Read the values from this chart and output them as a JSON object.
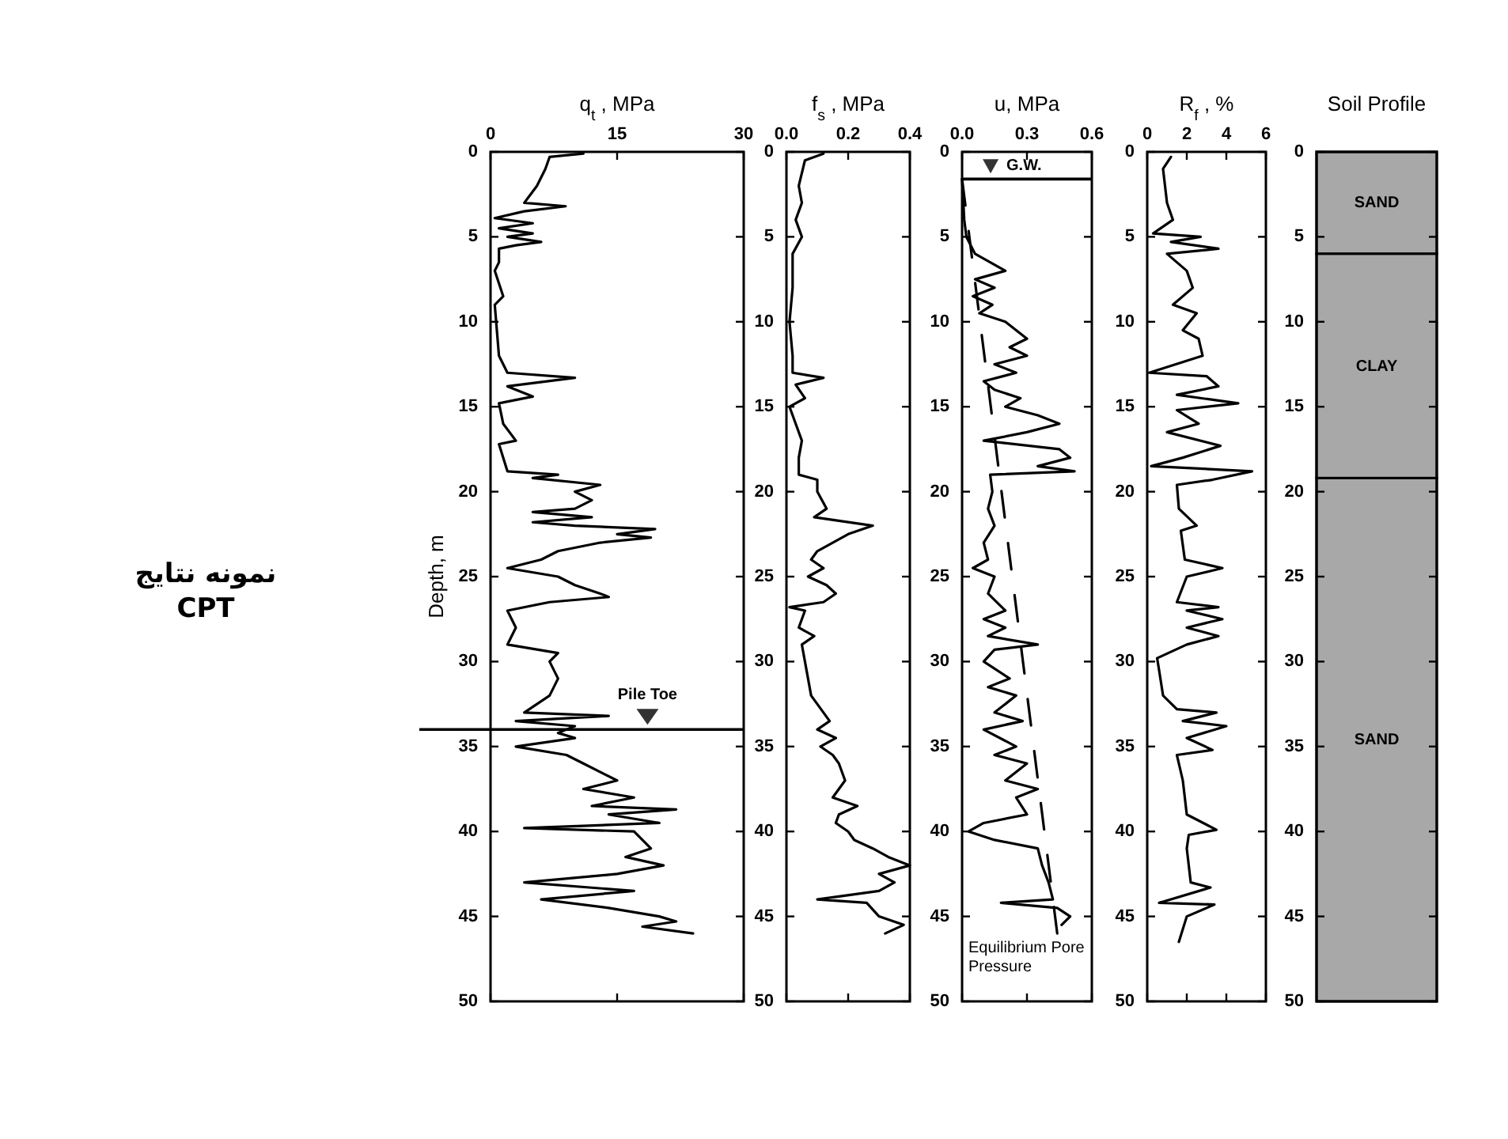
{
  "chart_data": [
    {
      "type": "other",
      "title": "نمونه نتایج CPT"
    },
    {
      "type": "line",
      "xlabel": "q$_{t}$ , MPa",
      "ylabel": "Depth, m",
      "xlim": [
        0,
        30
      ],
      "xticks": [
        0,
        15,
        30
      ],
      "ylim": [
        50,
        0
      ],
      "yticks": [
        0,
        5,
        10,
        15,
        20,
        25,
        30,
        35,
        40,
        45,
        50
      ],
      "series": [
        {
          "color": "#000000",
          "x": [
            11,
            7,
            6.5,
            5.5,
            4,
            8.9,
            4,
            0.5,
            5,
            1,
            5,
            2,
            6,
            3,
            1,
            1,
            0.5,
            1.5,
            0.5,
            1,
            2,
            10,
            2,
            5,
            1,
            1.5,
            3,
            1,
            2,
            8,
            5,
            13,
            10,
            12,
            10,
            5,
            12,
            5,
            10,
            19.5,
            15,
            19,
            13,
            8,
            6,
            2,
            8,
            10,
            13,
            14,
            7,
            2,
            3,
            2,
            8,
            7,
            8,
            7,
            4,
            14,
            3,
            10,
            8,
            10,
            3,
            9,
            11,
            15,
            11,
            17,
            12,
            22,
            14,
            20,
            4,
            17,
            19,
            16,
            20.5,
            15,
            4,
            17,
            6,
            14,
            20,
            22,
            18,
            24
          ],
          "values": [
            0.1,
            0.3,
            1,
            2,
            3,
            3.2,
            3.5,
            3.9,
            4.2,
            4.5,
            4.8,
            5,
            5.3,
            5.5,
            5.7,
            6.5,
            7,
            8.5,
            9,
            12,
            13,
            13.3,
            13.8,
            14.4,
            14.8,
            16,
            17,
            17.2,
            18.8,
            19,
            19.2,
            19.6,
            20,
            20.5,
            21,
            21.2,
            21.5,
            21.8,
            22,
            22.2,
            22.5,
            22.7,
            23,
            23.5,
            24,
            24.5,
            25,
            25.5,
            26,
            26.2,
            26.5,
            27,
            28,
            29,
            29.5,
            30,
            31,
            32,
            33,
            33.2,
            33.5,
            33.8,
            34.2,
            34.5,
            35,
            35.5,
            36,
            37,
            37.5,
            38,
            38.5,
            38.7,
            39,
            39.5,
            39.8,
            40,
            41,
            41.5,
            42,
            42.5,
            43,
            43.5,
            44,
            44.5,
            45,
            45.3,
            45.6,
            46
          ]
        }
      ],
      "ref_lines": [
        {
          "axis": "y",
          "value": 34,
          "label": "Pile Toe",
          "color": "#000000"
        }
      ]
    },
    {
      "type": "line",
      "xlabel": "f$_{s}$ , MPa",
      "xlim": [
        0,
        0.4
      ],
      "xticks": [
        {
          "value": 0,
          "label": "0.0"
        },
        0.2,
        0.4
      ],
      "ylim": [
        50,
        0
      ],
      "yticks": [
        0,
        5,
        10,
        15,
        20,
        25,
        30,
        35,
        40,
        45,
        50
      ],
      "series": [
        {
          "color": "#000000",
          "x": [
            0.12,
            0.06,
            0.04,
            0.05,
            0.03,
            0.05,
            0.02,
            0.02,
            0.01,
            0.02,
            0.02,
            0.12,
            0.03,
            0.06,
            0.01,
            0.03,
            0.05,
            0.04,
            0.04,
            0.1,
            0.1,
            0.13,
            0.09,
            0.28,
            0.2,
            0.15,
            0.1,
            0.08,
            0.12,
            0.07,
            0.13,
            0.16,
            0.12,
            0.01,
            0.06,
            0.04,
            0.09,
            0.05,
            0.06,
            0.07,
            0.08,
            0.1,
            0.12,
            0.14,
            0.1,
            0.16,
            0.11,
            0.15,
            0.17,
            0.19,
            0.17,
            0.15,
            0.23,
            0.17,
            0.16,
            0.2,
            0.22,
            0.28,
            0.33,
            0.4,
            0.3,
            0.35,
            0.3,
            0.1,
            0.26,
            0.3,
            0.38,
            0.32
          ],
          "values": [
            0.1,
            0.5,
            2,
            3,
            4,
            5,
            6,
            8,
            10,
            12,
            13,
            13.3,
            13.7,
            14.5,
            15,
            16,
            17,
            18,
            19,
            19.3,
            20,
            21,
            21.5,
            22,
            22.5,
            23,
            23.5,
            24,
            24.5,
            25,
            25.5,
            26,
            26.5,
            26.8,
            27,
            28,
            28.5,
            29,
            30,
            31,
            32,
            32.5,
            33,
            33.5,
            34,
            34.5,
            35,
            35.5,
            36,
            37,
            37.5,
            38,
            38.5,
            39,
            39.5,
            40,
            40.5,
            41,
            41.5,
            42,
            42.5,
            43,
            43.5,
            44,
            44.2,
            45,
            45.5,
            46
          ]
        }
      ]
    },
    {
      "type": "line",
      "xlabel": "u, MPa",
      "xlim": [
        0,
        0.6
      ],
      "xticks": [
        {
          "value": 0,
          "label": "0.0"
        },
        0.3,
        0.6
      ],
      "ylim": [
        50,
        0
      ],
      "yticks": [
        0,
        5,
        10,
        15,
        20,
        25,
        30,
        35,
        40,
        45,
        50
      ],
      "series": [
        {
          "color": "#000000",
          "x": [
            0,
            0.01,
            0.02,
            0.06,
            0.13,
            0.2,
            0.06,
            0.15,
            0.05,
            0.14,
            0.08,
            0.2,
            0.3,
            0.22,
            0.3,
            0.15,
            0.25,
            0.1,
            0.15,
            0.27,
            0.2,
            0.35,
            0.45,
            0.3,
            0.1,
            0.45,
            0.5,
            0.35,
            0.52,
            0.13,
            0.14,
            0.12,
            0.15,
            0.1,
            0.12,
            0.05,
            0.15,
            0.12,
            0.2,
            0.1,
            0.2,
            0.12,
            0.35,
            0.15,
            0.1,
            0.22,
            0.12,
            0.25,
            0.15,
            0.28,
            0.1,
            0.25,
            0.15,
            0.3,
            0.2,
            0.35,
            0.25,
            0.3,
            0.1,
            0.03,
            0.15,
            0.35,
            0.37,
            0.4,
            0.42,
            0.18,
            0.44,
            0.5,
            0.46
          ],
          "values": [
            1.6,
            4,
            5,
            6,
            6.5,
            7,
            7.5,
            8,
            8.5,
            9,
            9.5,
            10,
            11,
            11.5,
            12,
            12.5,
            13,
            13.5,
            14,
            14.5,
            15,
            15.5,
            16,
            16.5,
            17,
            17.5,
            18,
            18.5,
            18.8,
            19,
            20,
            21,
            22,
            23,
            24,
            24.5,
            25,
            26,
            27,
            27.5,
            28,
            28.5,
            29,
            29.3,
            30,
            31,
            31.5,
            32,
            33,
            33.5,
            34,
            35,
            35.5,
            36,
            37,
            37.5,
            38,
            39,
            39.5,
            40,
            40.5,
            41,
            42,
            43,
            44,
            44.2,
            44.5,
            45,
            45.5
          ]
        },
        {
          "color": "#000000",
          "line_style": "dashed",
          "x": [
            0,
            0.44
          ],
          "values": [
            1.6,
            46
          ]
        }
      ],
      "ref_lines": [
        {
          "axis": "y",
          "value": 1.6,
          "label": "G.W.",
          "color": "#000000"
        }
      ],
      "annotations": [
        {
          "text": "Equilibrium Pore Pressure",
          "x": 0.44,
          "y": 46
        }
      ]
    },
    {
      "type": "line",
      "xlabel": "R$_{f}$ , %",
      "xlim": [
        0,
        6
      ],
      "xticks": [
        0,
        2,
        4,
        6
      ],
      "ylim": [
        50,
        0
      ],
      "yticks": [
        0,
        5,
        10,
        15,
        20,
        25,
        30,
        35,
        40,
        45,
        50
      ],
      "series": [
        {
          "color": "#000000",
          "x": [
            1.2,
            0.8,
            1,
            1.3,
            0.3,
            2.7,
            1.2,
            3.6,
            1,
            2,
            2.3,
            1.3,
            2.5,
            1.8,
            2.6,
            2.8,
            0.1,
            3,
            3.6,
            1.5,
            4.6,
            1.5,
            2.6,
            1,
            3.7,
            1.8,
            0.2,
            5.3,
            3.3,
            1.5,
            1.6,
            2.5,
            1.7,
            1.9,
            3.8,
            2,
            1.5,
            3.6,
            2,
            3.8,
            2,
            3.6,
            2,
            0.5,
            0.6,
            0.8,
            1.5,
            3.5,
            1.8,
            4,
            2,
            3.3,
            1.5,
            1.8,
            2,
            3.5,
            2.1,
            2,
            2.2,
            3.2,
            0.6,
            3.4,
            2,
            1.6
          ],
          "values": [
            0.3,
            1,
            3,
            4,
            4.8,
            5,
            5.3,
            5.7,
            6,
            7,
            8,
            9,
            9.5,
            10.5,
            11,
            12,
            13,
            13.2,
            13.8,
            14.3,
            14.8,
            15.2,
            16,
            16.5,
            17.3,
            18,
            18.5,
            18.8,
            19.3,
            19.6,
            21,
            22,
            22.3,
            24,
            24.5,
            25,
            26.5,
            26.8,
            27,
            27.5,
            28,
            28.5,
            29,
            29.8,
            30.5,
            32,
            32.8,
            33,
            33.5,
            33.8,
            34.5,
            35.2,
            35.5,
            37,
            39,
            39.9,
            40.2,
            41,
            43,
            43.3,
            44.2,
            44.3,
            45,
            46.5
          ]
        }
      ]
    },
    {
      "type": "bar",
      "title": "Soil Profile",
      "stacked": true,
      "categories": [
        null
      ],
      "ylim": [
        50,
        0
      ],
      "yticks": [
        0,
        5,
        10,
        15,
        20,
        25,
        30,
        35,
        40,
        45,
        50
      ],
      "series": [
        {
          "name": "SAND",
          "color": "#a8a8a8",
          "values": [
            6
          ]
        },
        {
          "name": "CLAY",
          "color": "#a8a8a8",
          "values": [
            13.2
          ]
        },
        {
          "name": "SAND",
          "color": "#a8a8a8",
          "values": [
            30.8
          ]
        }
      ]
    }
  ]
}
